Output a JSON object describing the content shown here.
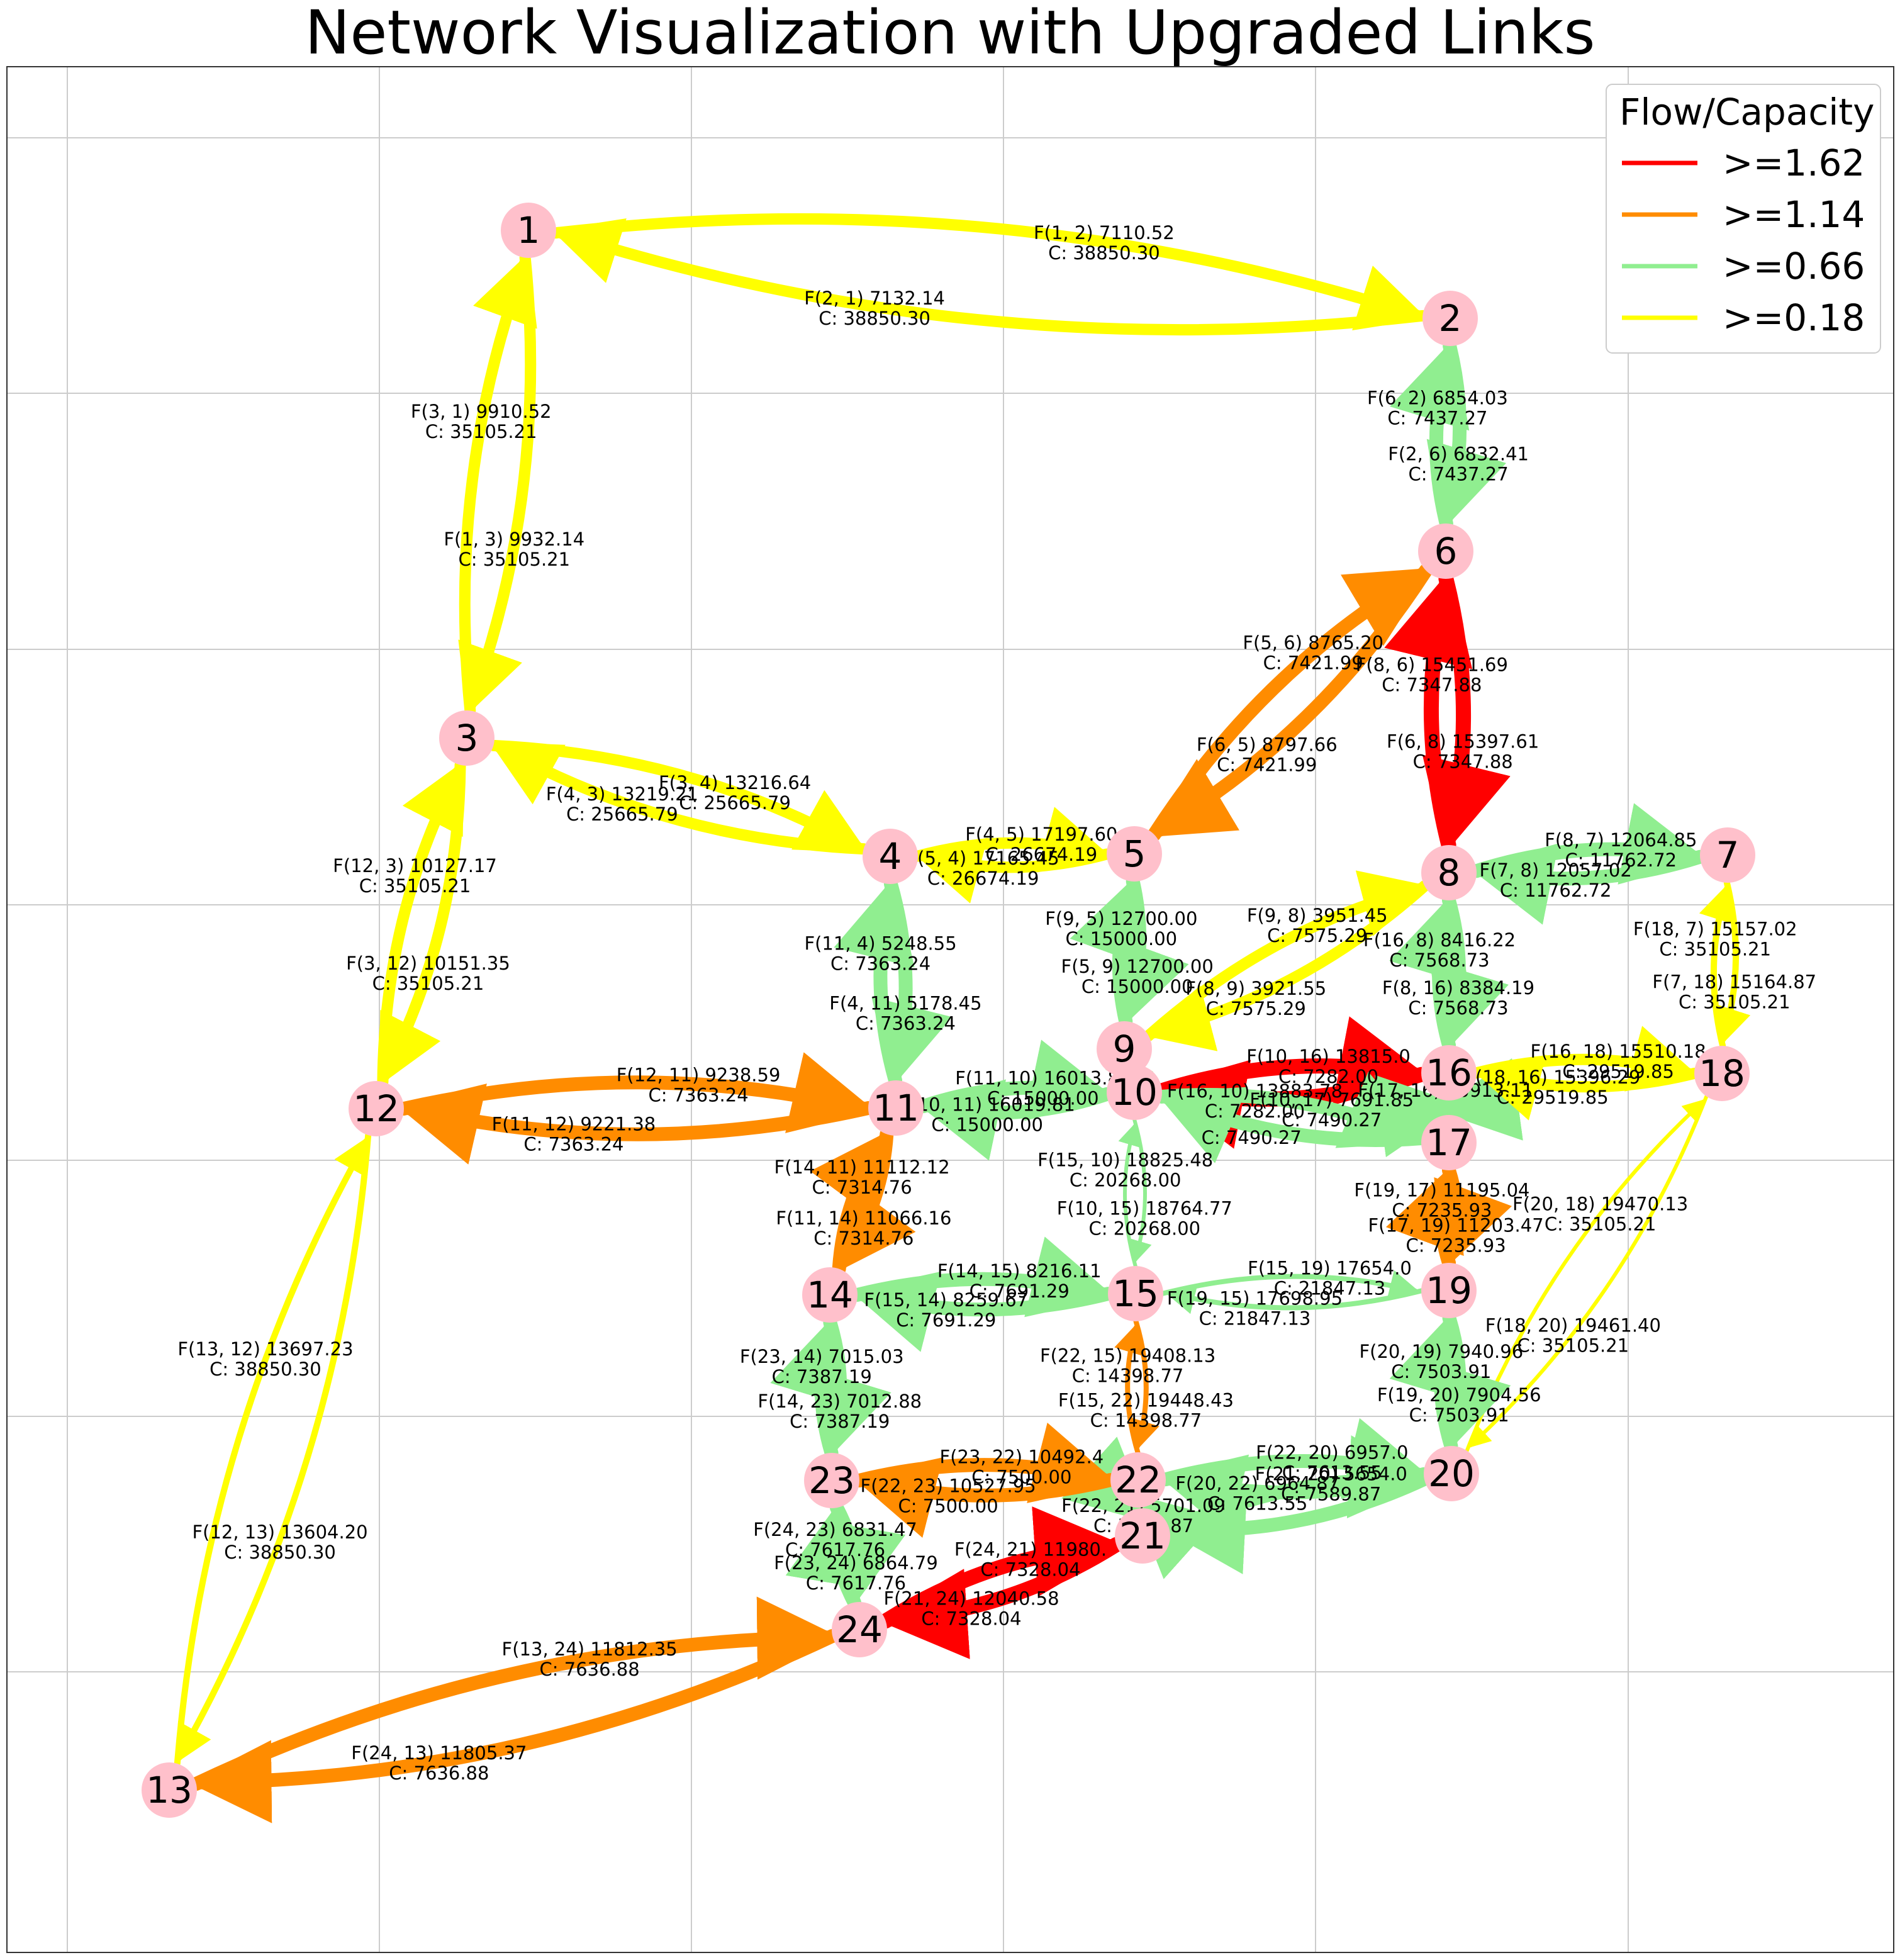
{
  "title": "Network Visualization with Upgraded Links",
  "legend": {
    "title": "Flow/Capacity",
    "items": [
      {
        "label": ">=1.62",
        "color": "#ff0000"
      },
      {
        "label": ">=1.14",
        "color": "#ff8c00"
      },
      {
        "label": ">=0.66",
        "color": "#90ee90"
      },
      {
        "label": ">=0.18",
        "color": "#ffff00"
      }
    ]
  },
  "node_color": "#ffc0cb",
  "nodes": [
    "1",
    "2",
    "3",
    "4",
    "5",
    "6",
    "7",
    "8",
    "9",
    "10",
    "11",
    "12",
    "13",
    "14",
    "15",
    "16",
    "17",
    "18",
    "19",
    "20",
    "21",
    "22",
    "23",
    "24"
  ],
  "edges": [
    {
      "from": 1,
      "to": 2,
      "flow": "7110.52",
      "cap": "38850.30",
      "color": "#ffff00"
    },
    {
      "from": 2,
      "to": 1,
      "flow": "7132.14",
      "cap": "38850.30",
      "color": "#ffff00"
    },
    {
      "from": 1,
      "to": 3,
      "flow": "9932.14",
      "cap": "35105.21",
      "color": "#ffff00"
    },
    {
      "from": 3,
      "to": 1,
      "flow": "9910.52",
      "cap": "35105.21",
      "color": "#ffff00"
    },
    {
      "from": 2,
      "to": 6,
      "flow": "6832.41",
      "cap": "7437.27",
      "color": "#90ee90"
    },
    {
      "from": 6,
      "to": 2,
      "flow": "6854.03",
      "cap": "7437.27",
      "color": "#90ee90"
    },
    {
      "from": 3,
      "to": 4,
      "flow": "13216.64",
      "cap": "25665.79",
      "color": "#ffff00"
    },
    {
      "from": 4,
      "to": 3,
      "flow": "13219.21",
      "cap": "25665.79",
      "color": "#ffff00"
    },
    {
      "from": 3,
      "to": 12,
      "flow": "10151.35",
      "cap": "35105.21",
      "color": "#ffff00"
    },
    {
      "from": 12,
      "to": 3,
      "flow": "10127.17",
      "cap": "35105.21",
      "color": "#ffff00"
    },
    {
      "from": 4,
      "to": 5,
      "flow": "17197.60",
      "cap": "26674.19",
      "color": "#ffff00"
    },
    {
      "from": 5,
      "to": 4,
      "flow": "17165.45",
      "cap": "26674.19",
      "color": "#ffff00"
    },
    {
      "from": 4,
      "to": 11,
      "flow": "5178.45",
      "cap": "7363.24",
      "color": "#90ee90"
    },
    {
      "from": 11,
      "to": 4,
      "flow": "5248.55",
      "cap": "7363.24",
      "color": "#90ee90"
    },
    {
      "from": 5,
      "to": 6,
      "flow": "8765.20",
      "cap": "7421.99",
      "color": "#ff8c00"
    },
    {
      "from": 6,
      "to": 5,
      "flow": "8797.66",
      "cap": "7421.99",
      "color": "#ff8c00"
    },
    {
      "from": 5,
      "to": 9,
      "flow": "12700.00",
      "cap": "15000.00",
      "color": "#90ee90"
    },
    {
      "from": 9,
      "to": 5,
      "flow": "12700.00",
      "cap": "15000.00",
      "color": "#90ee90"
    },
    {
      "from": 6,
      "to": 8,
      "flow": "15397.61",
      "cap": "7347.88",
      "color": "#ff0000"
    },
    {
      "from": 8,
      "to": 6,
      "flow": "15451.69",
      "cap": "7347.88",
      "color": "#ff0000"
    },
    {
      "from": 7,
      "to": 8,
      "flow": "12057.02",
      "cap": "11762.72",
      "color": "#90ee90"
    },
    {
      "from": 8,
      "to": 7,
      "flow": "12064.85",
      "cap": "11762.72",
      "color": "#90ee90"
    },
    {
      "from": 7,
      "to": 18,
      "flow": "15164.87",
      "cap": "35105.21",
      "color": "#ffff00"
    },
    {
      "from": 18,
      "to": 7,
      "flow": "15157.02",
      "cap": "35105.21",
      "color": "#ffff00"
    },
    {
      "from": 8,
      "to": 9,
      "flow": "3921.55",
      "cap": "7575.29",
      "color": "#ffff00"
    },
    {
      "from": 9,
      "to": 8,
      "flow": "3951.45",
      "cap": "7575.29",
      "color": "#ffff00"
    },
    {
      "from": 8,
      "to": 16,
      "flow": "8384.19",
      "cap": "7568.73",
      "color": "#90ee90"
    },
    {
      "from": 16,
      "to": 8,
      "flow": "8416.22",
      "cap": "7568.73",
      "color": "#90ee90"
    },
    {
      "from": 9,
      "to": 10,
      "flow": "",
      "cap": "",
      "color": "#90ee90"
    },
    {
      "from": 10,
      "to": 9,
      "flow": "",
      "cap": "",
      "color": "#90ee90"
    },
    {
      "from": 10,
      "to": 11,
      "flow": "16019.81",
      "cap": "15000.00",
      "color": "#90ee90"
    },
    {
      "from": 11,
      "to": 10,
      "flow": "16013.81",
      "cap": "15000.00",
      "color": "#90ee90"
    },
    {
      "from": 10,
      "to": 15,
      "flow": "18764.77",
      "cap": "20268.00",
      "color": "#90ee90"
    },
    {
      "from": 15,
      "to": 10,
      "flow": "18825.48",
      "cap": "20268.00",
      "color": "#90ee90"
    },
    {
      "from": 10,
      "to": 16,
      "flow": "13815.0",
      "cap": "7282.00",
      "color": "#ff0000"
    },
    {
      "from": 16,
      "to": 10,
      "flow": "13883.78",
      "cap": "7282.00",
      "color": "#ff0000"
    },
    {
      "from": 10,
      "to": 17,
      "flow": "7691.85",
      "cap": "7490.27",
      "color": "#90ee90"
    },
    {
      "from": 17,
      "to": 10,
      "flow": "",
      "cap": "7490.27",
      "color": "#90ee90"
    },
    {
      "from": 11,
      "to": 12,
      "flow": "9221.38",
      "cap": "7363.24",
      "color": "#ff8c00"
    },
    {
      "from": 12,
      "to": 11,
      "flow": "9238.59",
      "cap": "7363.24",
      "color": "#ff8c00"
    },
    {
      "from": 11,
      "to": 14,
      "flow": "11066.16",
      "cap": "7314.76",
      "color": "#ff8c00"
    },
    {
      "from": 14,
      "to": 11,
      "flow": "11112.12",
      "cap": "7314.76",
      "color": "#ff8c00"
    },
    {
      "from": 12,
      "to": 13,
      "flow": "13604.20",
      "cap": "38850.30",
      "color": "#ffff00"
    },
    {
      "from": 13,
      "to": 12,
      "flow": "13697.23",
      "cap": "38850.30",
      "color": "#ffff00"
    },
    {
      "from": 13,
      "to": 24,
      "flow": "11812.35",
      "cap": "7636.88",
      "color": "#ff8c00"
    },
    {
      "from": 24,
      "to": 13,
      "flow": "11805.37",
      "cap": "7636.88",
      "color": "#ff8c00"
    },
    {
      "from": 14,
      "to": 15,
      "flow": "8216.11",
      "cap": "7691.29",
      "color": "#90ee90"
    },
    {
      "from": 15,
      "to": 14,
      "flow": "8259.67",
      "cap": "7691.29",
      "color": "#90ee90"
    },
    {
      "from": 14,
      "to": 23,
      "flow": "7012.88",
      "cap": "7387.19",
      "color": "#90ee90"
    },
    {
      "from": 23,
      "to": 14,
      "flow": "7015.03",
      "cap": "7387.19",
      "color": "#90ee90"
    },
    {
      "from": 15,
      "to": 19,
      "flow": "17654.0",
      "cap": "21847.13",
      "color": "#90ee90"
    },
    {
      "from": 19,
      "to": 15,
      "flow": "17698.95",
      "cap": "21847.13",
      "color": "#90ee90"
    },
    {
      "from": 15,
      "to": 22,
      "flow": "19448.43",
      "cap": "14398.77",
      "color": "#ff8c00"
    },
    {
      "from": 22,
      "to": 15,
      "flow": "19408.13",
      "cap": "14398.77",
      "color": "#ff8c00"
    },
    {
      "from": 16,
      "to": 17,
      "flow": "",
      "cap": "",
      "color": "#90ee90"
    },
    {
      "from": 17,
      "to": 16,
      "flow": "10913.11",
      "cap": "",
      "color": "#90ee90"
    },
    {
      "from": 16,
      "to": 18,
      "flow": "15510.18",
      "cap": "29519.85",
      "color": "#ffff00"
    },
    {
      "from": 18,
      "to": 16,
      "flow": "15396.29",
      "cap": "29519.85",
      "color": "#ffff00"
    },
    {
      "from": 17,
      "to": 19,
      "flow": "11203.47",
      "cap": "7235.93",
      "color": "#ff8c00"
    },
    {
      "from": 19,
      "to": 17,
      "flow": "11195.04",
      "cap": "7235.93",
      "color": "#ff8c00"
    },
    {
      "from": 18,
      "to": 20,
      "flow": "19461.40",
      "cap": "35105.21",
      "color": "#ffff00"
    },
    {
      "from": 20,
      "to": 18,
      "flow": "19470.13",
      "cap": "35105.21",
      "color": "#ffff00"
    },
    {
      "from": 19,
      "to": 20,
      "flow": "7904.56",
      "cap": "7503.91",
      "color": "#90ee90"
    },
    {
      "from": 20,
      "to": 19,
      "flow": "7940.96",
      "cap": "7503.91",
      "color": "#90ee90"
    },
    {
      "from": 20,
      "to": 21,
      "flow": "",
      "cap": "",
      "color": "#90ee90"
    },
    {
      "from": 21,
      "to": 20,
      "flow": "5654.0",
      "cap": "7589.87",
      "color": "#90ee90"
    },
    {
      "from": 20,
      "to": 22,
      "flow": "6964.87",
      "cap": "7613.55",
      "color": "#90ee90"
    },
    {
      "from": 22,
      "to": 20,
      "flow": "6957.0",
      "cap": "7613.55",
      "color": "#90ee90"
    },
    {
      "from": 21,
      "to": 22,
      "flow": "",
      "cap": "",
      "color": "#90ee90"
    },
    {
      "from": 22,
      "to": 21,
      "flow": "5701.09",
      "cap": "7589.87",
      "color": "#90ee90"
    },
    {
      "from": 21,
      "to": 24,
      "flow": "12040.58",
      "cap": "7328.04",
      "color": "#ff0000"
    },
    {
      "from": 24,
      "to": 21,
      "flow": "11980.",
      "cap": "7328.04",
      "color": "#ff0000"
    },
    {
      "from": 22,
      "to": 23,
      "flow": "10527.95",
      "cap": "7500.00",
      "color": "#ff8c00"
    },
    {
      "from": 23,
      "to": 22,
      "flow": "10492.4",
      "cap": "7500.00",
      "color": "#ff8c00"
    },
    {
      "from": 23,
      "to": 24,
      "flow": "6864.79",
      "cap": "7617.76",
      "color": "#90ee90"
    },
    {
      "from": 24,
      "to": 23,
      "flow": "6831.47",
      "cap": "7617.76",
      "color": "#90ee90"
    }
  ]
}
